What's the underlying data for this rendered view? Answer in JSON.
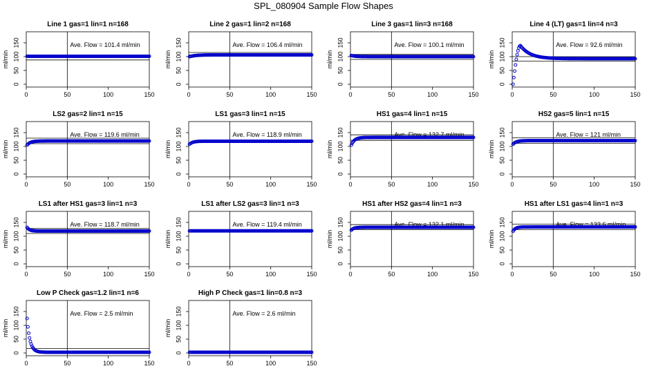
{
  "figure_title": "SPL_080904  Sample Flow Shapes",
  "colors": {
    "points": "#0000cc",
    "axes": "#000000",
    "background": "#ffffff"
  },
  "chart_data": [
    {
      "type": "scatter",
      "title": "Line 1 gas=1 lin=1 n=168",
      "ylabel": "ml/min",
      "annotation": "Ave. Flow =  101.4  ml/min",
      "xlim": [
        0,
        150
      ],
      "ylim": [
        -10,
        190
      ],
      "xticks": [
        0,
        50,
        100,
        150
      ],
      "yticks": [
        0,
        50,
        100,
        150
      ],
      "vline_x": 50,
      "hlines_y": [
        101.4,
        88
      ],
      "points": {
        "shape": "flat",
        "start": 101.4,
        "end": 101.4,
        "tau": 1,
        "n": 150
      }
    },
    {
      "type": "scatter",
      "title": "Line 2 gas=1 lin=2 n=168",
      "ylabel": "ml/min",
      "annotation": "Ave. Flow =  106.4  ml/min",
      "xlim": [
        0,
        150
      ],
      "ylim": [
        -10,
        190
      ],
      "xticks": [
        0,
        50,
        100,
        150
      ],
      "yticks": [
        0,
        50,
        100,
        150
      ],
      "vline_x": 50,
      "hlines_y": [
        115,
        106.4
      ],
      "points": {
        "shape": "rise",
        "start": 100,
        "end": 106.4,
        "tau": 8,
        "n": 150
      }
    },
    {
      "type": "scatter",
      "title": "Line 3 gas=1 lin=3 n=168",
      "ylabel": "ml/min",
      "annotation": "Ave. Flow =  100.1  ml/min",
      "xlim": [
        0,
        150
      ],
      "ylim": [
        -10,
        190
      ],
      "xticks": [
        0,
        50,
        100,
        150
      ],
      "yticks": [
        0,
        50,
        100,
        150
      ],
      "vline_x": 50,
      "hlines_y": [
        108,
        90
      ],
      "points": {
        "shape": "rise",
        "start": 104,
        "end": 100.1,
        "tau": 5,
        "n": 150
      }
    },
    {
      "type": "scatter",
      "title": "Line 4 (LT) gas=1 lin=4 n=3",
      "ylabel": "ml/min",
      "annotation": "Ave. Flow =  92.6  ml/min",
      "xlim": [
        0,
        150
      ],
      "ylim": [
        -10,
        190
      ],
      "xticks": [
        0,
        50,
        100,
        150
      ],
      "yticks": [
        0,
        50,
        100,
        150
      ],
      "vline_x": 50,
      "hlines_y": [
        100,
        84
      ],
      "points": {
        "shape": "overshoot",
        "start": 0,
        "peak": 140,
        "peakx": 10,
        "end": 92.6,
        "n": 150
      }
    },
    {
      "type": "scatter",
      "title": "LS2 gas=2 lin=1 n=15",
      "ylabel": "ml/min",
      "annotation": "Ave. Flow =  119.6  ml/min",
      "xlim": [
        0,
        150
      ],
      "ylim": [
        -10,
        190
      ],
      "xticks": [
        0,
        50,
        100,
        150
      ],
      "yticks": [
        0,
        50,
        100,
        150
      ],
      "vline_x": 50,
      "hlines_y": [
        130,
        110
      ],
      "points": {
        "shape": "rise",
        "start": 105,
        "end": 119.6,
        "tau": 4,
        "n": 150
      }
    },
    {
      "type": "scatter",
      "title": "LS1 gas=3 lin=1 n=15",
      "ylabel": "ml/min",
      "annotation": "Ave. Flow =  118.9  ml/min",
      "xlim": [
        0,
        150
      ],
      "ylim": [
        -10,
        190
      ],
      "xticks": [
        0,
        50,
        100,
        150
      ],
      "yticks": [
        0,
        50,
        100,
        150
      ],
      "vline_x": 50,
      "hlines_y": [],
      "points": {
        "shape": "rise",
        "start": 108,
        "end": 118.9,
        "tau": 4,
        "n": 150
      }
    },
    {
      "type": "scatter",
      "title": "HS1 gas=4 lin=1 n=15",
      "ylabel": "ml/min",
      "annotation": "Ave. Flow =  132.7  ml/min",
      "xlim": [
        0,
        150
      ],
      "ylim": [
        -10,
        190
      ],
      "xticks": [
        0,
        50,
        100,
        150
      ],
      "yticks": [
        0,
        50,
        100,
        150
      ],
      "vline_x": 50,
      "hlines_y": [
        142,
        122
      ],
      "points": {
        "shape": "rise",
        "start": 105,
        "end": 132.7,
        "tau": 4,
        "n": 150
      }
    },
    {
      "type": "scatter",
      "title": "HS2 gas=5 lin=1 n=15",
      "ylabel": "ml/min",
      "annotation": "Ave. Flow =  121  ml/min",
      "xlim": [
        0,
        150
      ],
      "ylim": [
        -10,
        190
      ],
      "xticks": [
        0,
        50,
        100,
        150
      ],
      "yticks": [
        0,
        50,
        100,
        150
      ],
      "vline_x": 50,
      "hlines_y": [
        131,
        111
      ],
      "points": {
        "shape": "rise",
        "start": 108,
        "end": 121,
        "tau": 4,
        "n": 150
      }
    },
    {
      "type": "scatter",
      "title": "LS1 after HS1 gas=3 lin=1 n=3",
      "ylabel": "ml/min",
      "annotation": "Ave. Flow =  118.7  ml/min",
      "xlim": [
        0,
        150
      ],
      "ylim": [
        -10,
        190
      ],
      "xticks": [
        0,
        50,
        100,
        150
      ],
      "yticks": [
        0,
        50,
        100,
        150
      ],
      "vline_x": 50,
      "hlines_y": [
        128,
        110
      ],
      "points": {
        "shape": "rise",
        "start": 132,
        "end": 118.7,
        "tau": 3,
        "n": 150
      }
    },
    {
      "type": "scatter",
      "title": "LS1 after LS2 gas=3 lin=1 n=3",
      "ylabel": "ml/min",
      "annotation": "Ave. Flow =  119.4  ml/min",
      "xlim": [
        0,
        150
      ],
      "ylim": [
        -10,
        190
      ],
      "xticks": [
        0,
        50,
        100,
        150
      ],
      "yticks": [
        0,
        50,
        100,
        150
      ],
      "vline_x": 50,
      "hlines_y": [],
      "points": {
        "shape": "flat",
        "start": 119.4,
        "end": 119.4,
        "tau": 1,
        "n": 150
      }
    },
    {
      "type": "scatter",
      "title": "HS1 after HS2 gas=4 lin=1 n=3",
      "ylabel": "ml/min",
      "annotation": "Ave. Flow =  132.1  ml/min",
      "xlim": [
        0,
        150
      ],
      "ylim": [
        -10,
        190
      ],
      "xticks": [
        0,
        50,
        100,
        150
      ],
      "yticks": [
        0,
        50,
        100,
        150
      ],
      "vline_x": 50,
      "hlines_y": [
        142,
        124
      ],
      "points": {
        "shape": "rise",
        "start": 122,
        "end": 132.1,
        "tau": 3,
        "n": 150
      }
    },
    {
      "type": "scatter",
      "title": "HS1 after LS1 gas=4 lin=1 n=3",
      "ylabel": "ml/min",
      "annotation": "Ave. Flow =  133.6  ml/min",
      "xlim": [
        0,
        150
      ],
      "ylim": [
        -10,
        190
      ],
      "xticks": [
        0,
        50,
        100,
        150
      ],
      "yticks": [
        0,
        50,
        100,
        150
      ],
      "vline_x": 50,
      "hlines_y": [
        144,
        124
      ],
      "points": {
        "shape": "rise",
        "start": 118,
        "end": 133.6,
        "tau": 3,
        "n": 150
      }
    },
    {
      "type": "scatter",
      "title": "Low P Check gas=1.2 lin=1 n=6",
      "ylabel": "ml/min",
      "annotation": "Ave. Flow =  2.5  ml/min",
      "xlim": [
        0,
        150
      ],
      "ylim": [
        -10,
        190
      ],
      "xticks": [
        0,
        50,
        100,
        150
      ],
      "yticks": [
        0,
        50,
        100,
        150
      ],
      "vline_x": 50,
      "hlines_y": [
        16
      ],
      "points": {
        "shape": "decay",
        "start": 125,
        "end": 2.5,
        "tau": 3.5,
        "n": 150
      }
    },
    {
      "type": "scatter",
      "title": "High P Check gas=1 lin=0.8 n=3",
      "ylabel": "ml/min",
      "annotation": "Ave. Flow =  2.6  ml/min",
      "xlim": [
        0,
        150
      ],
      "ylim": [
        -10,
        190
      ],
      "xticks": [
        0,
        50,
        100,
        150
      ],
      "yticks": [
        0,
        50,
        100,
        150
      ],
      "vline_x": 50,
      "hlines_y": [],
      "points": {
        "shape": "flat",
        "start": 2.6,
        "end": 2.6,
        "tau": 1,
        "n": 150
      }
    }
  ]
}
